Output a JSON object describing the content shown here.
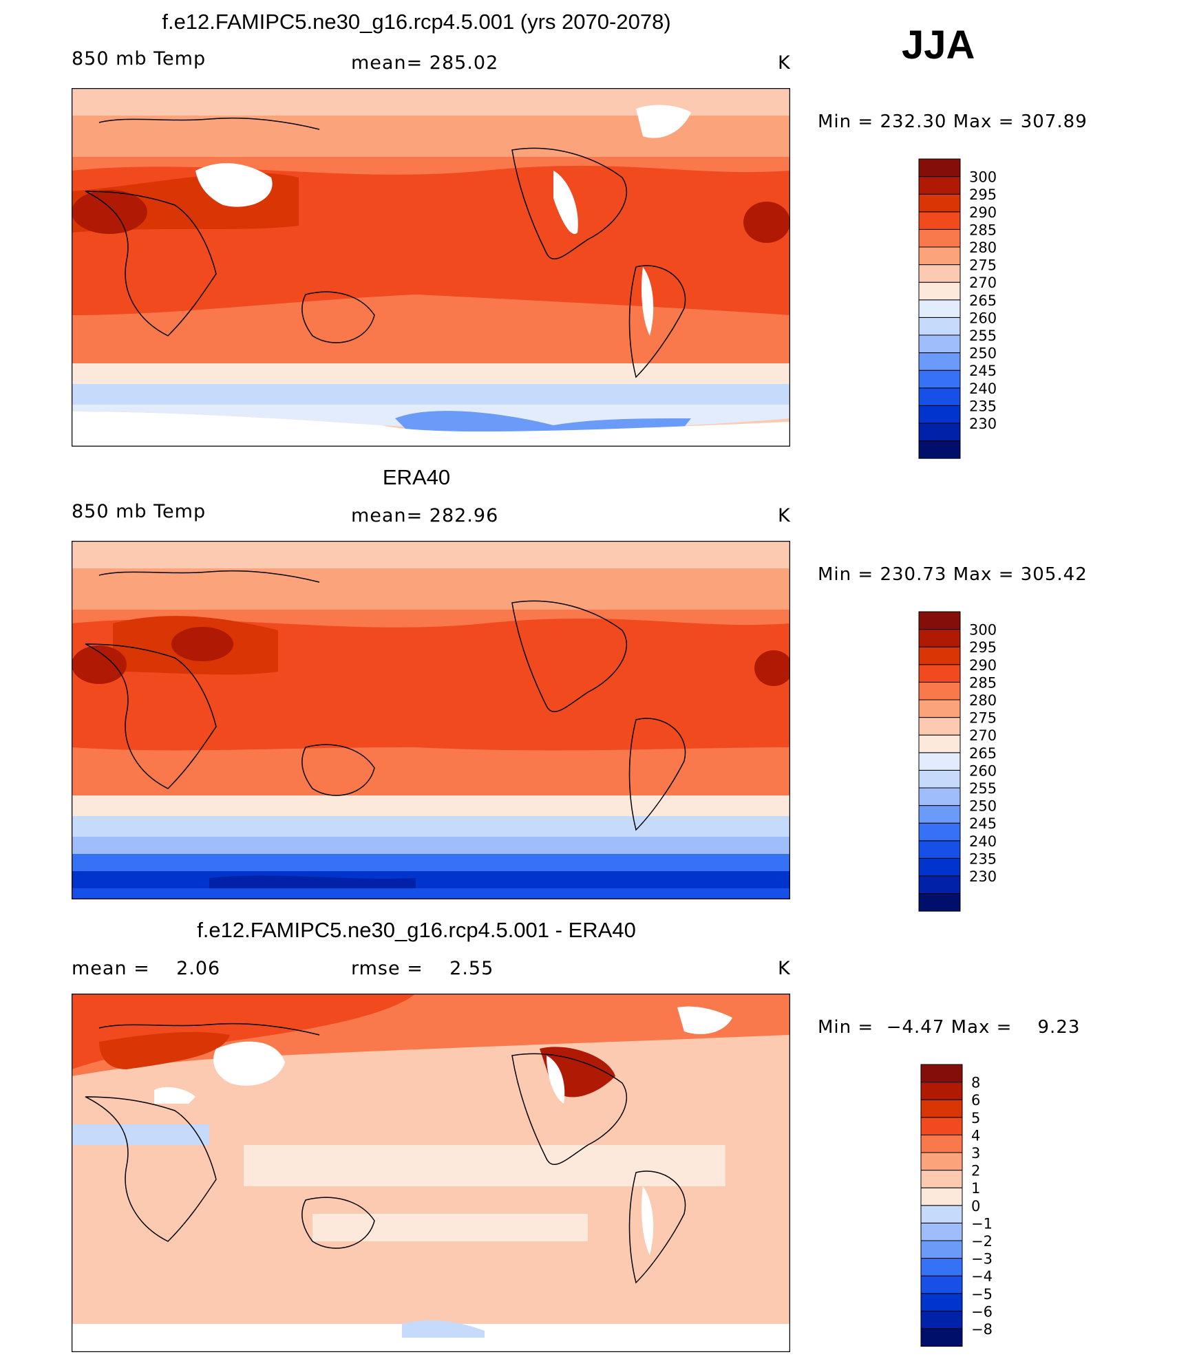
{
  "season": "JJA",
  "colors": {
    "abs": [
      "#00106a",
      "#0021a8",
      "#0034cc",
      "#1650e8",
      "#3672f5",
      "#6a9bf8",
      "#9ebdfa",
      "#c6dafb",
      "#e2ecfc",
      "#fde9dc",
      "#fccab0",
      "#fba47c",
      "#f9784c",
      "#f24a1f",
      "#d93505",
      "#b01a04",
      "#830f08"
    ],
    "diff": [
      "#00106a",
      "#0021a8",
      "#0034cc",
      "#1650e8",
      "#3672f5",
      "#6a9bf8",
      "#9ebdfa",
      "#c6dafb",
      "#fde9dc",
      "#fccab0",
      "#fba47c",
      "#f9784c",
      "#f24a1f",
      "#d93505",
      "#b01a04",
      "#830f08"
    ]
  },
  "chart_data": [
    {
      "type": "heatmap",
      "title": "f.e12.FAMIPC5.ne30_g16.rcp4.5.001 (yrs 2070-2078)",
      "left_label": "850 mb Temp",
      "center_label": "mean= 285.02",
      "units": "K",
      "min_max": "Min = 232.30 Max = 307.89",
      "levels": [
        "300",
        "295",
        "290",
        "285",
        "280",
        "275",
        "270",
        "265",
        "260",
        "255",
        "250",
        "245",
        "240",
        "235",
        "230"
      ]
    },
    {
      "type": "heatmap",
      "title": "ERA40",
      "left_label": "850 mb Temp",
      "center_label": "mean= 282.96",
      "units": "K",
      "min_max": "Min = 230.73 Max = 305.42",
      "levels": [
        "300",
        "295",
        "290",
        "285",
        "280",
        "275",
        "270",
        "265",
        "260",
        "255",
        "250",
        "245",
        "240",
        "235",
        "230"
      ]
    },
    {
      "type": "heatmap",
      "title": "f.e12.FAMIPC5.ne30_g16.rcp4.5.001 - ERA40",
      "left_label": "mean =    2.06",
      "center_label": "rmse =    2.55",
      "units": "K",
      "min_max": "Min =  −4.47 Max =    9.23",
      "levels": [
        "8",
        "6",
        "5",
        "4",
        "3",
        "2",
        "1",
        "0",
        "−1",
        "−2",
        "−3",
        "−4",
        "−5",
        "−6",
        "−8"
      ]
    }
  ]
}
